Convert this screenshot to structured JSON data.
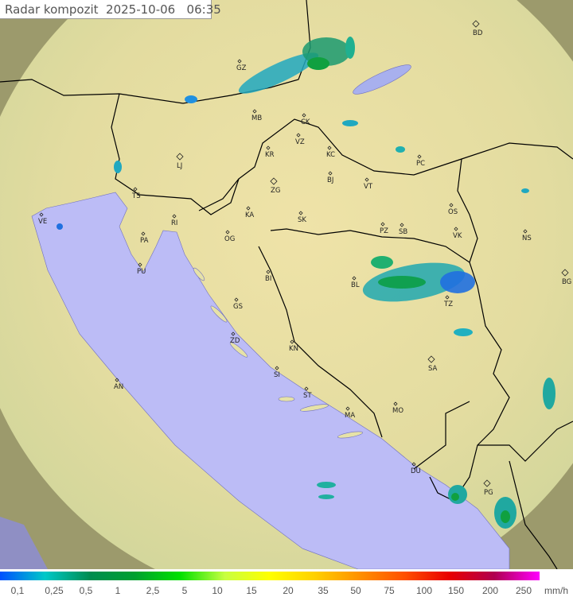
{
  "header": {
    "title": "Radar kompozit",
    "date": "2025-10-06",
    "time": "06:35"
  },
  "map": {
    "cities": [
      "BD",
      "GZ",
      "MB",
      "CK",
      "VZ",
      "KR",
      "KC",
      "PC",
      "LJ",
      "BJ",
      "VT",
      "ZG",
      "TS",
      "KA",
      "SK",
      "OS",
      "VE",
      "RI",
      "PA",
      "PZ",
      "SB",
      "VK",
      "NS",
      "OG",
      "PU",
      "BI",
      "BL",
      "BG",
      "TZ",
      "GS",
      "ZD",
      "KN",
      "SA",
      "SI",
      "AN",
      "ST",
      "MA",
      "MO",
      "DU",
      "PG"
    ],
    "colors": {
      "sea": "#bcbcf6",
      "land": "#e9e0a2",
      "outside_coverage": "#9c9a6c",
      "border": "#000000"
    }
  },
  "legend": {
    "unit": "mm/h",
    "ticks": [
      "0,1",
      "0,25",
      "0,5",
      "1",
      "2,5",
      "5",
      "10",
      "15",
      "20",
      "35",
      "50",
      "75",
      "100",
      "150",
      "200",
      "250"
    ],
    "colors": [
      "#0050ff",
      "#00c8c8",
      "#008c50",
      "#00a030",
      "#00e000",
      "#c8ff40",
      "#ffff00",
      "#ffd000",
      "#ff9000",
      "#ff5000",
      "#e80000",
      "#b00050",
      "#ff00ff"
    ]
  }
}
